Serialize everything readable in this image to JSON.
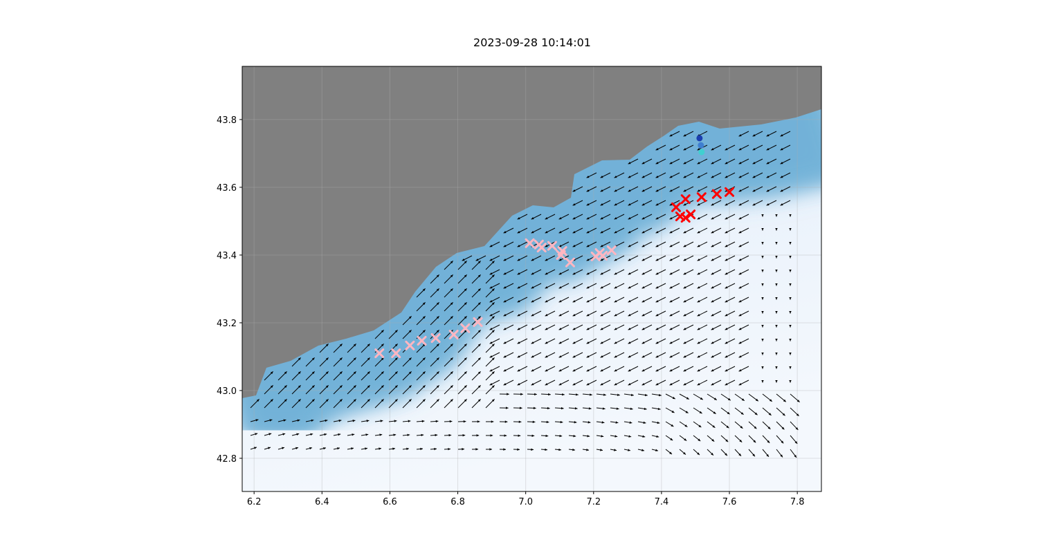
{
  "title": "2023-09-28 10:14:01",
  "colors": {
    "land": "#808080",
    "sea_deep": "#08306b",
    "sea_shallow": "#f2f7fd",
    "marker_red": "#ff0000",
    "marker_pink": "#ffb6c1"
  },
  "chart_data": {
    "type": "scatter",
    "title": "2023-09-28 10:14:01",
    "xlabel": "",
    "ylabel": "",
    "xlim": [
      6.165,
      7.871
    ],
    "ylim": [
      42.702,
      43.957
    ],
    "grid": true,
    "xticks": [
      "6.2",
      "6.4",
      "6.6",
      "6.8",
      "7.0",
      "7.2",
      "7.4",
      "7.6",
      "7.8"
    ],
    "yticks": [
      "42.8",
      "43.0",
      "43.2",
      "43.4",
      "43.6",
      "43.8"
    ],
    "background": "bathymetry colormap (Blues) with land in gray and current vectors (quiver)",
    "series": [
      {
        "marker": "x",
        "color": "#ff0000",
        "points": [
          [
            7.471,
            43.565
          ],
          [
            7.518,
            43.571
          ],
          [
            7.563,
            43.58
          ],
          [
            7.6,
            43.586
          ],
          [
            7.443,
            43.541
          ],
          [
            7.455,
            43.514
          ],
          [
            7.471,
            43.51
          ],
          [
            7.486,
            43.52
          ]
        ]
      },
      {
        "marker": "x",
        "color": "#ffb6c1",
        "points": [
          [
            7.012,
            43.435
          ],
          [
            7.039,
            43.431
          ],
          [
            7.047,
            43.422
          ],
          [
            7.078,
            43.427
          ],
          [
            7.108,
            43.412
          ],
          [
            7.104,
            43.4
          ],
          [
            7.131,
            43.378
          ],
          [
            7.206,
            43.396
          ],
          [
            7.218,
            43.406
          ],
          [
            7.227,
            43.398
          ],
          [
            7.253,
            43.414
          ],
          [
            6.569,
            43.11
          ],
          [
            6.618,
            43.11
          ],
          [
            6.659,
            43.133
          ],
          [
            6.694,
            43.147
          ],
          [
            6.735,
            43.155
          ],
          [
            6.788,
            43.165
          ],
          [
            6.822,
            43.184
          ],
          [
            6.859,
            43.202
          ]
        ]
      },
      {
        "marker": "o",
        "points": [
          [
            7.512,
            43.745,
            "#1a3fb0"
          ],
          [
            7.516,
            43.724,
            "#3f7fd0"
          ],
          [
            7.518,
            43.704,
            "#40d0d0"
          ]
        ]
      }
    ]
  }
}
